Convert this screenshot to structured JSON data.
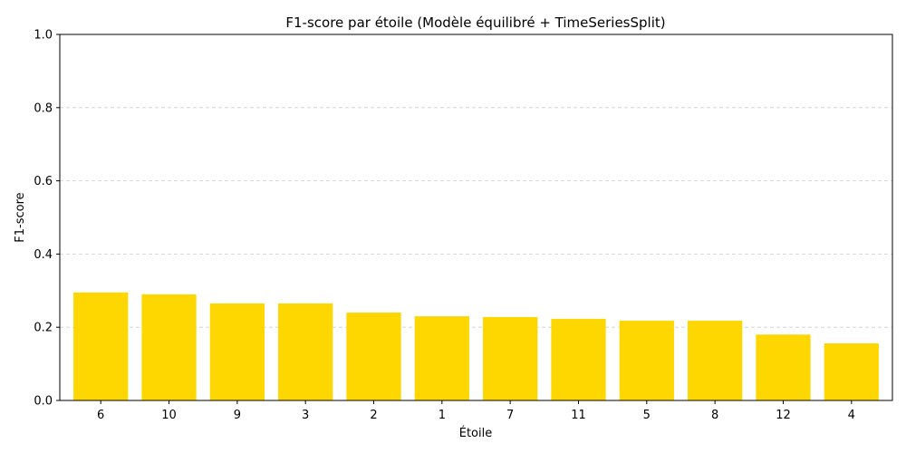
{
  "chart_data": {
    "type": "bar",
    "title": "F1-score par étoile (Modèle équilibré + TimeSeriesSplit)",
    "xlabel": "Étoile",
    "ylabel": "F1-score",
    "categories": [
      "6",
      "10",
      "9",
      "3",
      "2",
      "1",
      "7",
      "11",
      "5",
      "8",
      "12",
      "4"
    ],
    "values": [
      0.295,
      0.29,
      0.265,
      0.265,
      0.24,
      0.23,
      0.228,
      0.223,
      0.218,
      0.218,
      0.18,
      0.156
    ],
    "ylim": [
      0,
      1.0
    ],
    "yticks": [
      "0.0",
      "0.2",
      "0.4",
      "0.6",
      "0.8",
      "1.0"
    ],
    "grid": "y-dashed",
    "bar_color": "#FFD700"
  }
}
